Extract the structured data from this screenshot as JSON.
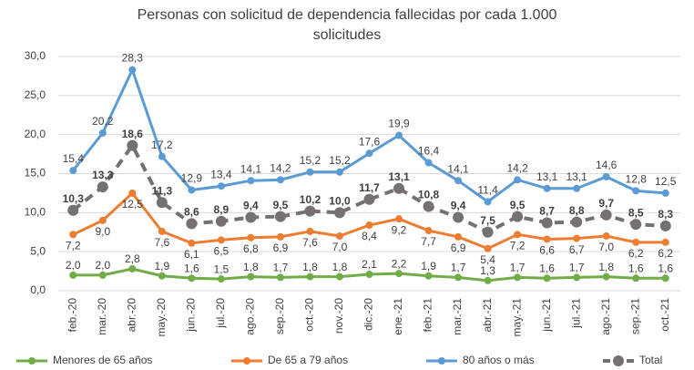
{
  "chart_data": {
    "type": "line",
    "title": "Personas con solicitud de dependencia fallecidas por cada 1.000 solicitudes",
    "categories": [
      "feb.-20",
      "mar.-20",
      "abr.-20",
      "may.-20",
      "jun.-20",
      "jul.-20",
      "ago.-20",
      "sep.-20",
      "oct.-20",
      "nov.-20",
      "dic.-20",
      "ene.-21",
      "feb.-21",
      "mar.-21",
      "abr.-21",
      "may.-21",
      "jun.-21",
      "jul.-21",
      "ago.-21",
      "sep.-21",
      "oct.-21"
    ],
    "ylim": [
      0,
      30
    ],
    "yticks": [
      {
        "value": 0,
        "label": "0,0"
      },
      {
        "value": 5,
        "label": "5,0"
      },
      {
        "value": 10,
        "label": "10,0"
      },
      {
        "value": 15,
        "label": "15,0"
      },
      {
        "value": 20,
        "label": "20,0"
      },
      {
        "value": 25,
        "label": "25,0"
      },
      {
        "value": 30,
        "label": "30,0"
      }
    ],
    "grid": true,
    "legend": "bottom",
    "series": [
      {
        "name": "Menores de 65 años",
        "color": "#70ad47",
        "line_style": "solid",
        "values": [
          2.0,
          2.0,
          2.8,
          1.9,
          1.6,
          1.5,
          1.8,
          1.7,
          1.8,
          1.8,
          2.1,
          2.2,
          1.9,
          1.7,
          1.3,
          1.7,
          1.6,
          1.7,
          1.8,
          1.6,
          1.6
        ],
        "value_labels": [
          "2,0",
          "2,0",
          "2,8",
          "1,9",
          "1,6",
          "1,5",
          "1,8",
          "1,7",
          "1,8",
          "1,8",
          "2,1",
          "2,2",
          "1,9",
          "1,7",
          "1,3",
          "1,7",
          "1,6",
          "1,7",
          "1,8",
          "1,6",
          "1,6"
        ]
      },
      {
        "name": "De 65 a 79 años",
        "color": "#ed7d31",
        "line_style": "solid",
        "values": [
          7.2,
          9.0,
          12.5,
          7.6,
          6.1,
          6.5,
          6.8,
          6.9,
          7.6,
          7.0,
          8.4,
          9.2,
          7.7,
          6.9,
          5.4,
          7.2,
          6.6,
          6.7,
          7.0,
          6.2,
          6.2
        ],
        "value_labels": [
          "7,2",
          "9,0",
          "12,5",
          "7,6",
          "6,1",
          "6,5",
          "6,8",
          "6,9",
          "7,6",
          "7,0",
          "8,4",
          "9,2",
          "7,7",
          "6,9",
          "5,4",
          "7,2",
          "6,6",
          "6,7",
          "7,0",
          "6,2",
          "6,2"
        ]
      },
      {
        "name": "80 años o más",
        "color": "#5b9bd5",
        "line_style": "solid",
        "values": [
          15.4,
          20.2,
          28.3,
          17.2,
          12.9,
          13.4,
          14.1,
          14.2,
          15.2,
          15.2,
          17.6,
          19.9,
          16.4,
          14.1,
          11.4,
          14.2,
          13.1,
          13.1,
          14.6,
          12.8,
          12.5
        ],
        "value_labels": [
          "15,4",
          "20,2",
          "28,3",
          "17,2",
          "12,9",
          "13,4",
          "14,1",
          "14,2",
          "15,2",
          "15,2",
          "17,6",
          "19,9",
          "16,4",
          "14,1",
          "11,4",
          "14,2",
          "13,1",
          "13,1",
          "14,6",
          "12,8",
          "12,5"
        ]
      },
      {
        "name": "Total",
        "color": "#767171",
        "line_style": "dashed",
        "values": [
          10.3,
          13.3,
          18.6,
          11.3,
          8.6,
          8.9,
          9.4,
          9.5,
          10.2,
          10.0,
          11.7,
          13.1,
          10.8,
          9.4,
          7.5,
          9.5,
          8.7,
          8.8,
          9.7,
          8.5,
          8.3
        ],
        "value_labels": [
          "10,3",
          "13,3",
          "18,6",
          "11,3",
          "8,6",
          "8,9",
          "9,4",
          "9,5",
          "10,2",
          "10,0",
          "11,7",
          "13,1",
          "10,8",
          "9,4",
          "7,5",
          "9,5",
          "8,7",
          "8,8",
          "9,7",
          "8,5",
          "8,3"
        ]
      }
    ]
  }
}
